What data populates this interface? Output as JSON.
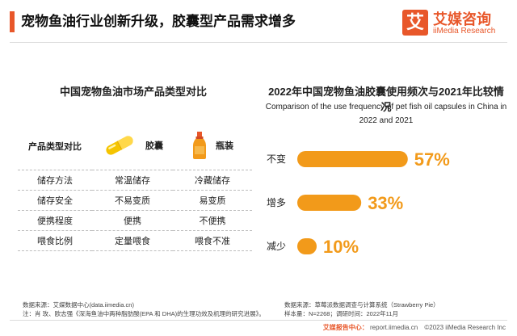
{
  "header": {
    "title": "宠物鱼油行业创新升级，胶囊型产品需求增多",
    "logo_mark": "艾",
    "logo_cn": "艾媒咨询",
    "logo_en": "iiMedia Research",
    "accent_color": "#e8572a"
  },
  "left_panel": {
    "title": "中国宠物鱼油市场产品类型对比",
    "header": {
      "label": "产品类型对比",
      "col1": "胶囊",
      "col2": "瓶装",
      "col1_icon": "capsule-icon",
      "col2_icon": "bottle-icon"
    },
    "rows": [
      {
        "label": "储存方法",
        "col1": "常温储存",
        "col2": "冷藏储存"
      },
      {
        "label": "储存安全",
        "col1": "不易变质",
        "col2": "易变质"
      },
      {
        "label": "便携程度",
        "col1": "便携",
        "col2": "不便携"
      },
      {
        "label": "喂食比例",
        "col1": "定量喂食",
        "col2": "喂食不准"
      }
    ],
    "source_lines": [
      "数据来源：艾媒数据中心(data.iimedia.cn)",
      "注：肖 玫、欧志强《深海鱼油中两种脂肪酸(EPA 和 DHA)的生理功效及机理的研究进展》。"
    ]
  },
  "chart_data": {
    "type": "bar",
    "orientation": "horizontal",
    "title": "2022年中国宠物鱼油胶囊使用频次与2021年比较情况",
    "subtitle": "Comparison of the use frequency of pet fish oil capsules in China in 2022 and 2021",
    "categories": [
      "不变",
      "增多",
      "减少"
    ],
    "values": [
      57,
      33,
      10
    ],
    "value_labels": [
      "57%",
      "33%",
      "10%"
    ],
    "unit": "%",
    "xlim": [
      0,
      100
    ],
    "grid": false,
    "legend": "none",
    "bar_color": "#f29a1a",
    "label_color": "#f29a1a"
  },
  "right_panel": {
    "source_lines": [
      "数据来源：草莓派数据调查与计算系统（Strawberry Pie）",
      "样本量：N=2268；调研时间：2022年11月"
    ]
  },
  "footer": {
    "logo_text": "艾媒报告中心：",
    "url": "report.iimedia.cn",
    "copyright": "©2023  iiMedia Research Inc"
  }
}
